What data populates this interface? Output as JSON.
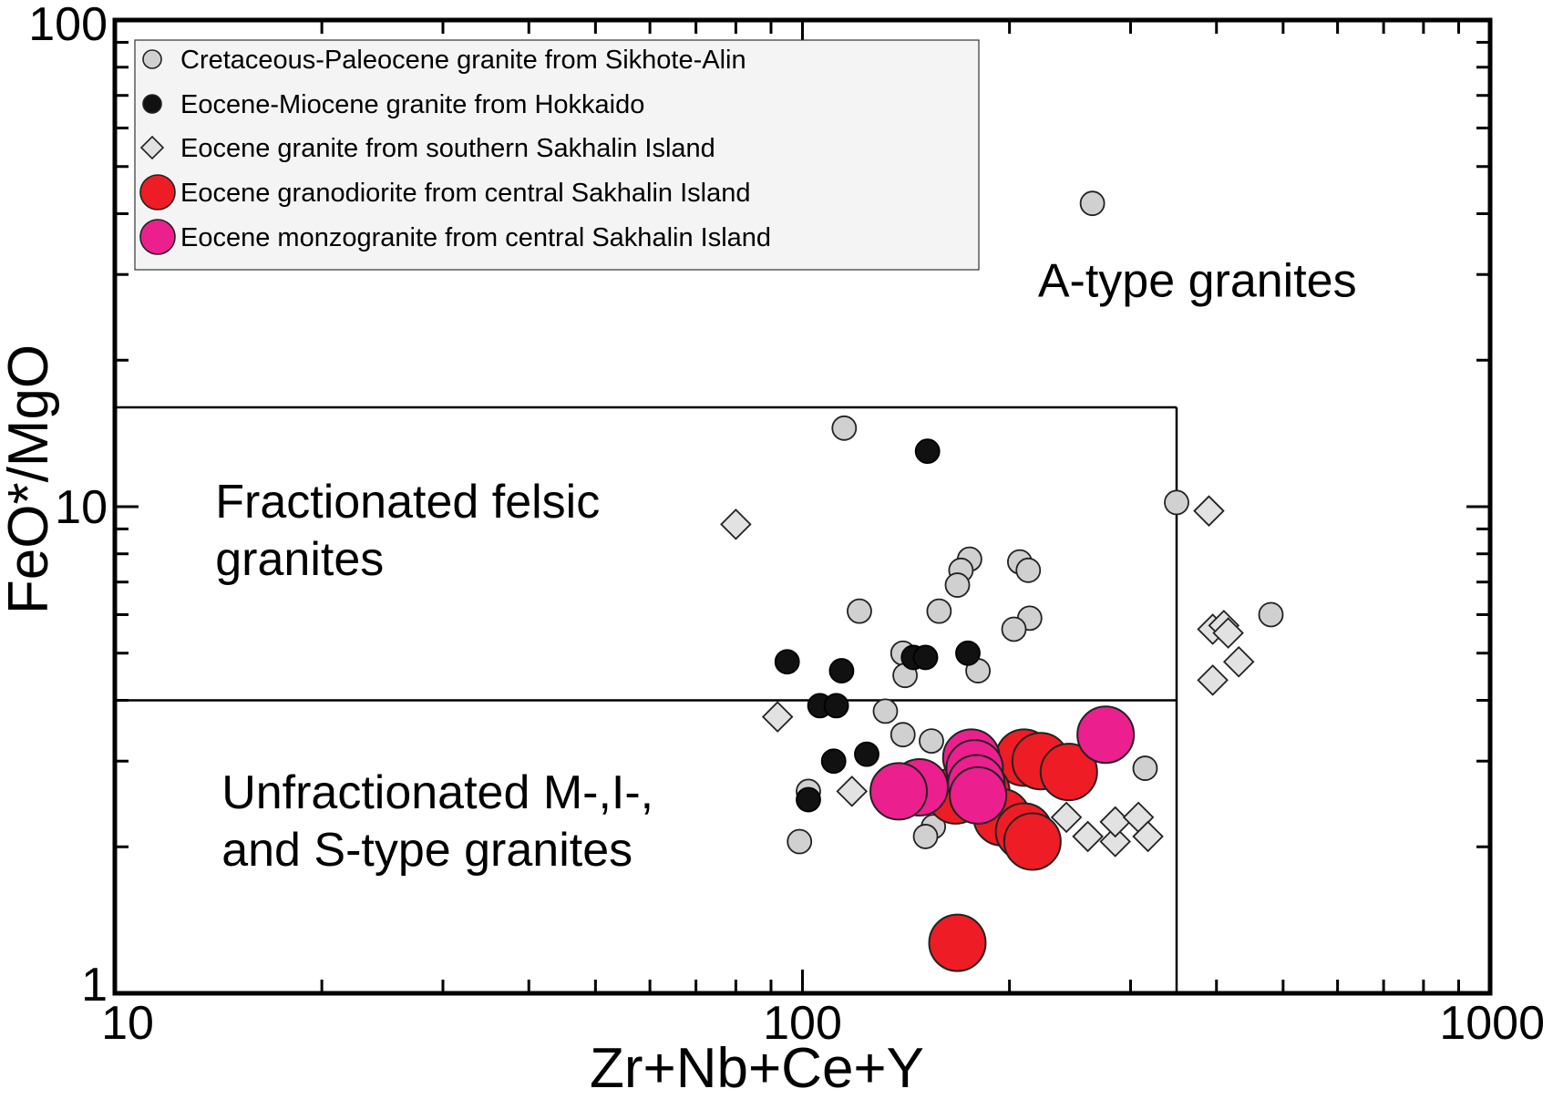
{
  "chart_data": {
    "type": "scatter",
    "xlabel": "Zr+Nb+Ce+Y",
    "ylabel": "FeO*/MgO",
    "xscale": "log",
    "yscale": "log",
    "xlim": [
      10,
      1000
    ],
    "ylim": [
      1,
      100
    ],
    "x_ticks": [
      "10",
      "100",
      "1000"
    ],
    "y_ticks": [
      "1",
      "10",
      "100"
    ],
    "grid": false,
    "legend_position": "top-left",
    "boundaries": [
      {
        "from": [
          10,
          16
        ],
        "to": [
          350,
          16
        ]
      },
      {
        "from": [
          350,
          16
        ],
        "to": [
          350,
          1
        ]
      },
      {
        "from": [
          10,
          4
        ],
        "to": [
          350,
          4
        ]
      }
    ],
    "region_labels": [
      {
        "lines": [
          "A-type granites"
        ],
        "x": 220,
        "y": 27
      },
      {
        "lines": [
          "Fractionated felsic",
          "granites"
        ],
        "x": 14,
        "y": 9.5
      },
      {
        "lines": [
          "Unfractionated M-,I-,",
          "and S-type granites"
        ],
        "x": 14.3,
        "y": 2.4
      }
    ],
    "series": [
      {
        "name": "Cretaceous-Paleocene granite from Sikhote-Alin",
        "marker": "circle",
        "size": "small",
        "color": "#d0d0d0",
        "points": [
          [
            264,
            42
          ],
          [
            115,
            14.5
          ],
          [
            350,
            10.2
          ],
          [
            175,
            7.8
          ],
          [
            207,
            7.7
          ],
          [
            213,
            7.4
          ],
          [
            170,
            7.4
          ],
          [
            168,
            6.9
          ],
          [
            121,
            6.1
          ],
          [
            158,
            6.1
          ],
          [
            480,
            6.0
          ],
          [
            214,
            5.9
          ],
          [
            203,
            5.6
          ],
          [
            140,
            5.0
          ],
          [
            141,
            4.5
          ],
          [
            180,
            4.6
          ],
          [
            132,
            3.8
          ],
          [
            140,
            3.4
          ],
          [
            154,
            3.3
          ],
          [
            315,
            2.9
          ],
          [
            102,
            2.6
          ],
          [
            155,
            2.2
          ],
          [
            151,
            2.1
          ],
          [
            99,
            2.05
          ]
        ]
      },
      {
        "name": "Eocene-Miocene granite from Hokkaido",
        "marker": "circle",
        "size": "small",
        "color": "#111111",
        "points": [
          [
            152,
            13
          ],
          [
            95,
            4.8
          ],
          [
            114,
            4.6
          ],
          [
            145,
            4.9
          ],
          [
            151,
            4.9
          ],
          [
            174,
            5.0
          ],
          [
            106,
            3.9
          ],
          [
            112,
            3.9
          ],
          [
            111,
            3.0
          ],
          [
            124,
            3.1
          ],
          [
            102,
            2.5
          ]
        ]
      },
      {
        "name": "Eocene granite from southern Sakhalin Island",
        "marker": "diamond",
        "size": "small",
        "color": "#e2e2e2",
        "points": [
          [
            80,
            9.2
          ],
          [
            390,
            9.8
          ],
          [
            395,
            5.6
          ],
          [
            410,
            5.7
          ],
          [
            416,
            5.5
          ],
          [
            431,
            4.8
          ],
          [
            395,
            4.4
          ],
          [
            92,
            3.7
          ],
          [
            118,
            2.6
          ],
          [
            242,
            2.3
          ],
          [
            260,
            2.1
          ],
          [
            285,
            2.05
          ],
          [
            285,
            2.25
          ],
          [
            308,
            2.3
          ],
          [
            318,
            2.1
          ]
        ]
      },
      {
        "name": "Eocene granodiorite from central Sakhalin Island",
        "marker": "circle",
        "size": "large",
        "color": "#ee1c24",
        "points": [
          [
            210,
            3.05
          ],
          [
            222,
            3.0
          ],
          [
            244,
            2.85
          ],
          [
            182,
            2.6
          ],
          [
            167,
            2.55
          ],
          [
            195,
            2.3
          ],
          [
            210,
            2.15
          ],
          [
            216,
            2.05
          ],
          [
            168,
            1.27
          ]
        ]
      },
      {
        "name": "Eocene monzogranite from central Sakhalin Island",
        "marker": "circle",
        "size": "large",
        "color": "#ec1f8f",
        "points": [
          [
            276,
            3.4
          ],
          [
            176,
            3.05
          ],
          [
            178,
            2.9
          ],
          [
            148,
            2.65
          ],
          [
            138,
            2.6
          ],
          [
            179,
            2.7
          ],
          [
            180,
            2.55
          ]
        ]
      }
    ]
  }
}
